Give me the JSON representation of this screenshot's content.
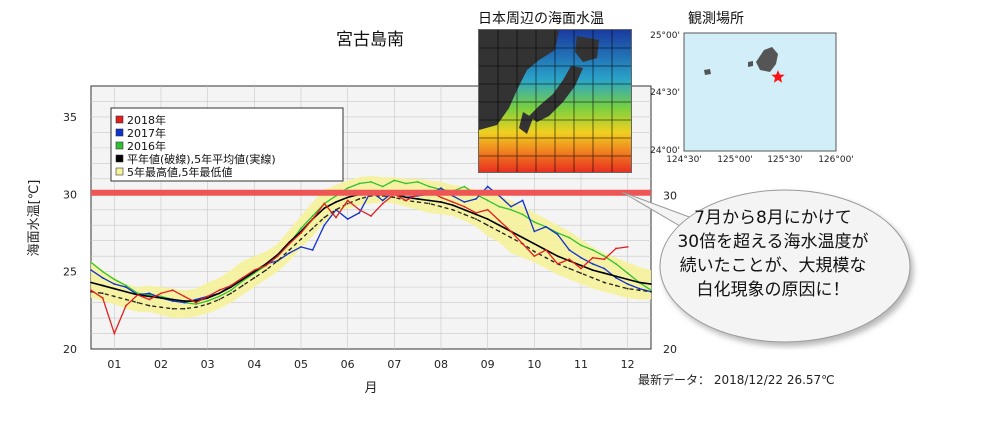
{
  "chart_data": {
    "type": "line",
    "title": "宮古島南",
    "xlabel": "月",
    "ylabel": "海面水温[℃]",
    "ylim": [
      20,
      37
    ],
    "xlim": [
      1,
      13
    ],
    "yticks": [
      20,
      25,
      30,
      35
    ],
    "xtick_labels": [
      "01",
      "02",
      "03",
      "04",
      "05",
      "06",
      "07",
      "08",
      "09",
      "10",
      "11",
      "12"
    ],
    "grid": true,
    "legend_position": "top-left",
    "legend": [
      "2018年",
      "2017年",
      "2016年",
      "平年値(破線),5年平均値(実線)",
      "5年最高値,5年最低値"
    ],
    "threshold": {
      "value": 30.1,
      "label": "30"
    },
    "x": [
      1.0,
      1.25,
      1.5,
      1.75,
      2.0,
      2.25,
      2.5,
      2.75,
      3.0,
      3.25,
      3.5,
      3.75,
      4.0,
      4.25,
      4.5,
      4.75,
      5.0,
      5.25,
      5.5,
      5.75,
      6.0,
      6.25,
      6.5,
      6.75,
      7.0,
      7.25,
      7.5,
      7.75,
      8.0,
      8.25,
      8.5,
      8.75,
      9.0,
      9.25,
      9.5,
      9.75,
      10.0,
      10.25,
      10.5,
      10.75,
      11.0,
      11.25,
      11.5,
      11.75,
      12.0,
      12.25,
      12.5,
      12.75,
      13.0
    ],
    "series": [
      {
        "name": "2018年",
        "color": "#e02020",
        "values": [
          23.8,
          23.3,
          21.0,
          22.8,
          23.5,
          23.2,
          23.6,
          23.8,
          23.4,
          23.0,
          23.4,
          23.8,
          24.1,
          24.6,
          25.1,
          25.4,
          26.0,
          26.8,
          27.5,
          28.4,
          29.4,
          28.5,
          29.6,
          29.0,
          28.6,
          29.4,
          30.0,
          29.6,
          30.0,
          30.2,
          29.8,
          29.5,
          29.2,
          28.8,
          29.0,
          28.3,
          27.6,
          26.8,
          26.0,
          26.4,
          25.5,
          25.8,
          25.2,
          25.9,
          25.8,
          26.5,
          26.6,
          null,
          null
        ]
      },
      {
        "name": "2017年",
        "color": "#1030d0",
        "values": [
          25.1,
          24.6,
          24.2,
          24.0,
          23.5,
          23.6,
          23.3,
          23.1,
          23.0,
          23.2,
          23.4,
          23.6,
          24.1,
          24.6,
          25.0,
          25.5,
          25.7,
          26.2,
          26.6,
          26.4,
          28.0,
          29.0,
          28.4,
          28.8,
          30.2,
          29.6,
          30.2,
          29.8,
          29.9,
          30.0,
          30.4,
          29.9,
          29.5,
          29.7,
          30.5,
          29.9,
          29.2,
          29.6,
          27.6,
          27.9,
          27.4,
          26.4,
          25.9,
          25.5,
          25.2,
          24.6,
          24.2,
          23.9,
          23.7
        ]
      },
      {
        "name": "2016年",
        "color": "#30c030",
        "values": [
          25.6,
          25.0,
          24.5,
          24.1,
          23.6,
          23.5,
          23.4,
          23.2,
          23.0,
          22.9,
          23.1,
          23.4,
          23.8,
          24.4,
          24.9,
          25.4,
          26.0,
          26.8,
          27.8,
          28.6,
          29.4,
          29.9,
          30.4,
          30.7,
          30.8,
          30.5,
          30.9,
          30.7,
          30.8,
          30.5,
          30.3,
          30.2,
          30.5,
          30.0,
          29.6,
          29.2,
          29.0,
          28.7,
          28.2,
          27.9,
          27.5,
          27.2,
          26.7,
          26.4,
          26.0,
          25.5,
          24.9,
          24.3,
          23.8
        ]
      },
      {
        "name": "平年値",
        "color": "#222222",
        "dash": true,
        "values": [
          23.7,
          23.6,
          23.4,
          23.2,
          23.0,
          22.8,
          22.7,
          22.6,
          22.6,
          22.7,
          22.9,
          23.2,
          23.6,
          24.1,
          24.6,
          25.1,
          25.7,
          26.4,
          27.1,
          27.8,
          28.5,
          29.0,
          29.4,
          29.7,
          29.9,
          29.9,
          29.8,
          29.6,
          29.5,
          29.4,
          29.2,
          29.0,
          28.7,
          28.4,
          28.0,
          27.6,
          27.2,
          26.8,
          26.3,
          25.9,
          25.5,
          25.2,
          24.9,
          24.6,
          24.3,
          24.1,
          23.9,
          23.8,
          23.7
        ]
      },
      {
        "name": "5年平均値",
        "color": "#000000",
        "values": [
          24.3,
          24.1,
          23.9,
          23.7,
          23.5,
          23.4,
          23.3,
          23.2,
          23.1,
          23.1,
          23.3,
          23.6,
          24.0,
          24.5,
          25.0,
          25.5,
          26.1,
          26.9,
          27.6,
          28.4,
          29.1,
          29.5,
          29.8,
          30.0,
          30.1,
          30.1,
          30.0,
          29.8,
          29.7,
          29.6,
          29.5,
          29.3,
          29.0,
          28.7,
          28.4,
          28.0,
          27.6,
          27.2,
          26.8,
          26.4,
          26.0,
          25.7,
          25.4,
          25.1,
          24.9,
          24.7,
          24.5,
          24.3,
          24.2
        ]
      },
      {
        "name": "5年最高値",
        "color": "#f6f29a",
        "band_high": true,
        "values": [
          25.7,
          25.1,
          24.6,
          24.2,
          24.0,
          24.1,
          24.0,
          23.9,
          23.8,
          23.9,
          24.3,
          24.6,
          25.1,
          25.7,
          26.0,
          26.3,
          26.8,
          27.7,
          28.6,
          29.5,
          30.3,
          30.6,
          30.9,
          31.1,
          31.2,
          31.1,
          31.1,
          31.0,
          31.0,
          30.9,
          30.8,
          30.6,
          30.5,
          30.3,
          30.2,
          29.9,
          29.6,
          29.2,
          28.8,
          28.4,
          28.0,
          27.6,
          27.1,
          26.6,
          26.2,
          25.9,
          25.6,
          25.3,
          25.1
        ]
      },
      {
        "name": "5年最低値",
        "color": "#f6f29a",
        "band_low": true,
        "values": [
          23.3,
          23.1,
          22.9,
          22.6,
          22.4,
          22.4,
          22.2,
          22.0,
          22.0,
          22.1,
          22.3,
          22.6,
          23.0,
          23.5,
          24.0,
          24.5,
          25.0,
          25.7,
          26.5,
          27.3,
          28.2,
          28.8,
          29.1,
          29.3,
          29.4,
          29.5,
          29.4,
          29.2,
          29.0,
          28.8,
          28.7,
          28.6,
          28.3,
          27.9,
          27.3,
          26.9,
          26.2,
          25.9,
          25.6,
          25.2,
          24.8,
          24.5,
          24.2,
          23.9,
          23.7,
          23.5,
          23.3,
          23.2,
          23.2
        ]
      }
    ]
  },
  "inset_sst": {
    "title": "日本周辺の海面水温"
  },
  "inset_location": {
    "title": "観測場所",
    "lat_labels": [
      "25°00'",
      "24°30'",
      "24°00'"
    ],
    "lon_labels": [
      "124°30'",
      "125°00'",
      "125°30'",
      "126°00'"
    ],
    "marker": "star",
    "marker_color": "#ff1010"
  },
  "callout": {
    "lines": [
      "7月から8月にかけて",
      "30倍を超える海水温度が",
      "続いたことが、大規模な",
      "白化現象の原因に！"
    ]
  },
  "latest": {
    "label": "最新データ：",
    "value": "2018/12/22 26.57℃"
  },
  "colors": {
    "threshold": "#ee5555",
    "plot_bg": "#f4f4f4",
    "grid": "#c8c8c8"
  }
}
